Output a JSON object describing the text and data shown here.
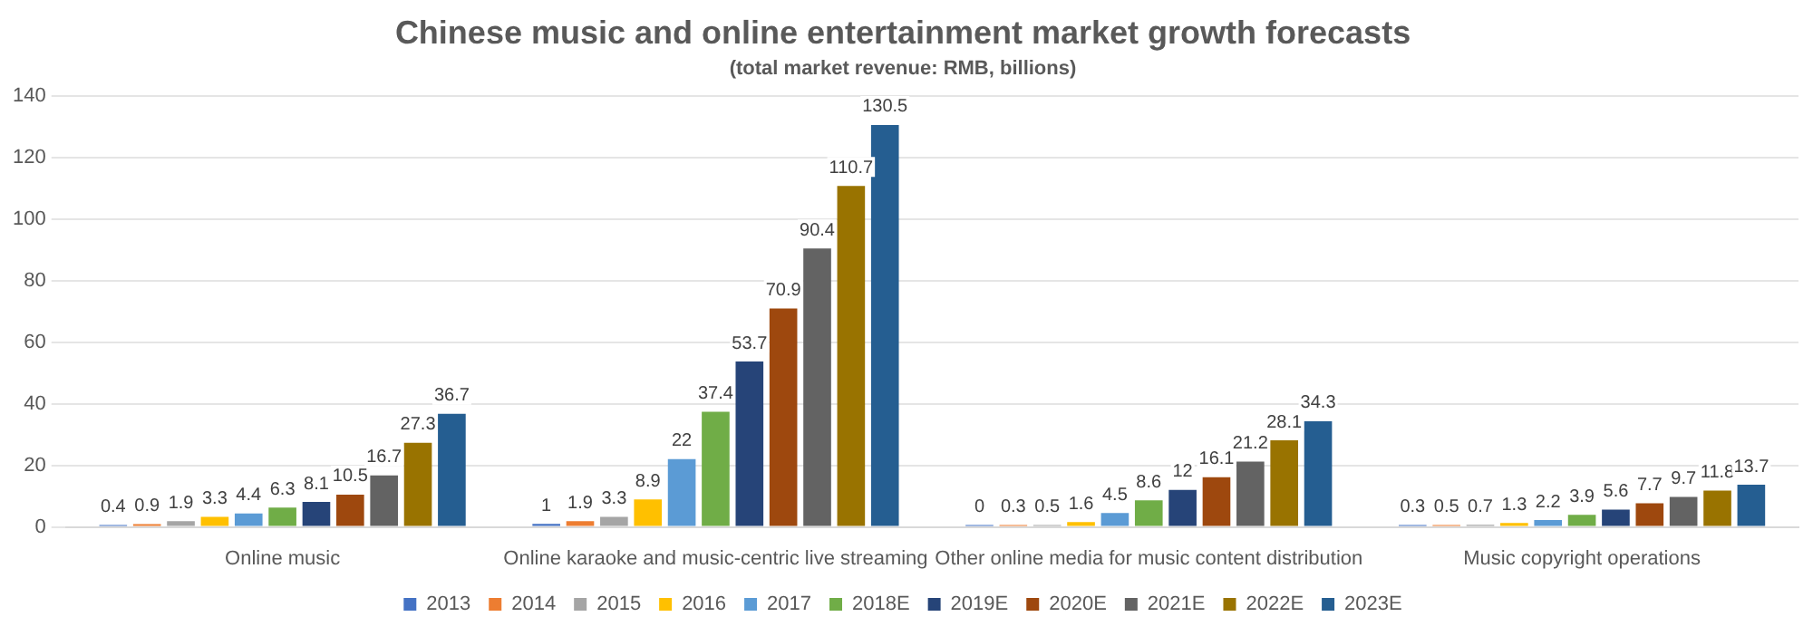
{
  "chart_data": {
    "type": "bar",
    "title": "Chinese music and online entertainment market growth forecasts",
    "subtitle": "(total market revenue: RMB, billions)",
    "categories": [
      "Online music",
      "Online karaoke and music-centric live streaming",
      "Other online media for music content distribution",
      "Music copyright operations"
    ],
    "series": [
      {
        "name": "2013",
        "color": "#4472c4",
        "values": [
          0.4,
          1,
          0,
          0.3
        ]
      },
      {
        "name": "2014",
        "color": "#ed7d31",
        "values": [
          0.9,
          1.9,
          0.3,
          0.5
        ]
      },
      {
        "name": "2015",
        "color": "#a5a5a5",
        "values": [
          1.9,
          3.3,
          0.5,
          0.7
        ]
      },
      {
        "name": "2016",
        "color": "#ffc000",
        "values": [
          3.3,
          8.9,
          1.6,
          1.3
        ]
      },
      {
        "name": "2017",
        "color": "#5b9bd5",
        "values": [
          4.4,
          22,
          4.5,
          2.2
        ]
      },
      {
        "name": "2018E",
        "color": "#70ad47",
        "values": [
          6.3,
          37.4,
          8.6,
          3.9
        ]
      },
      {
        "name": "2019E",
        "color": "#264478",
        "values": [
          8.1,
          53.7,
          12,
          5.6
        ]
      },
      {
        "name": "2020E",
        "color": "#9e480e",
        "values": [
          10.5,
          70.9,
          16.1,
          7.7
        ]
      },
      {
        "name": "2021E",
        "color": "#636363",
        "values": [
          16.7,
          90.4,
          21.2,
          9.7
        ]
      },
      {
        "name": "2022E",
        "color": "#997300",
        "values": [
          27.3,
          110.7,
          28.1,
          11.8
        ]
      },
      {
        "name": "2023E",
        "color": "#255e91",
        "values": [
          36.7,
          130.5,
          34.3,
          13.7
        ]
      }
    ],
    "ylim": [
      0,
      140
    ],
    "yticks": [
      0,
      20,
      40,
      60,
      80,
      100,
      120,
      140
    ],
    "grid": "y",
    "legend": "bottom",
    "data_labels": true
  }
}
